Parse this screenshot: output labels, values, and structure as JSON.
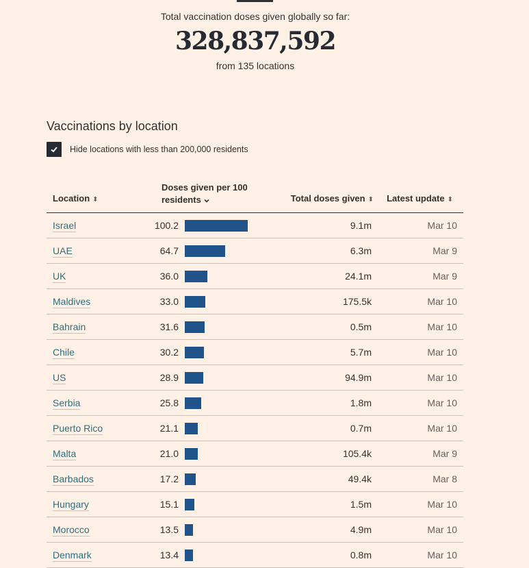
{
  "summary": {
    "label": "Total vaccination doses given globally so far:",
    "total": "328,837,592",
    "sub": "from 135 locations"
  },
  "section": {
    "title": "Vaccinations by location",
    "filter_label": "Hide locations with less than 200,000 residents",
    "filter_checked": true
  },
  "table": {
    "headers": {
      "location": "Location",
      "doses_line1": "Doses given per 100",
      "doses_line2": "residents",
      "total": "Total doses given",
      "update": "Latest update",
      "sort_glyph": "⬍"
    },
    "bar_color": "#1f538a",
    "bar_max": 100.2,
    "rows": [
      {
        "location": "Israel",
        "per100": "100.2",
        "per100_value": 100.2,
        "total": "9.1m",
        "update": "Mar 10"
      },
      {
        "location": "UAE",
        "per100": "64.7",
        "per100_value": 64.7,
        "total": "6.3m",
        "update": "Mar 9"
      },
      {
        "location": "UK",
        "per100": "36.0",
        "per100_value": 36.0,
        "total": "24.1m",
        "update": "Mar 9"
      },
      {
        "location": "Maldives",
        "per100": "33.0",
        "per100_value": 33.0,
        "total": "175.5k",
        "update": "Mar 10"
      },
      {
        "location": "Bahrain",
        "per100": "31.6",
        "per100_value": 31.6,
        "total": "0.5m",
        "update": "Mar 10"
      },
      {
        "location": "Chile",
        "per100": "30.2",
        "per100_value": 30.2,
        "total": "5.7m",
        "update": "Mar 10"
      },
      {
        "location": "US",
        "per100": "28.9",
        "per100_value": 28.9,
        "total": "94.9m",
        "update": "Mar 10"
      },
      {
        "location": "Serbia",
        "per100": "25.8",
        "per100_value": 25.8,
        "total": "1.8m",
        "update": "Mar 10"
      },
      {
        "location": "Puerto Rico",
        "per100": "21.1",
        "per100_value": 21.1,
        "total": "0.7m",
        "update": "Mar 10"
      },
      {
        "location": "Malta",
        "per100": "21.0",
        "per100_value": 21.0,
        "total": "105.4k",
        "update": "Mar 9"
      },
      {
        "location": "Barbados",
        "per100": "17.2",
        "per100_value": 17.2,
        "total": "49.4k",
        "update": "Mar 8"
      },
      {
        "location": "Hungary",
        "per100": "15.1",
        "per100_value": 15.1,
        "total": "1.5m",
        "update": "Mar 10"
      },
      {
        "location": "Morocco",
        "per100": "13.5",
        "per100_value": 13.5,
        "total": "4.9m",
        "update": "Mar 10"
      },
      {
        "location": "Denmark",
        "per100": "13.4",
        "per100_value": 13.4,
        "total": "0.8m",
        "update": "Mar 10"
      }
    ]
  }
}
